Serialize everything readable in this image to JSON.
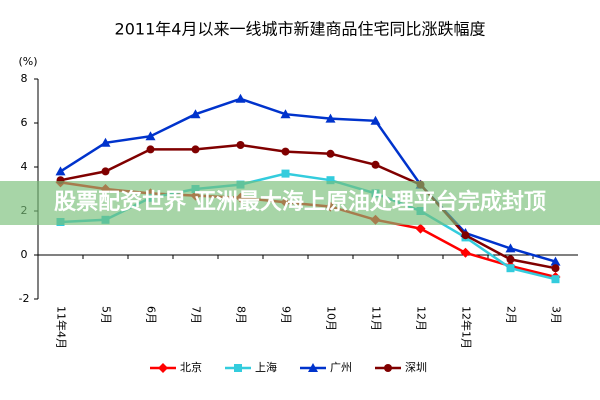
{
  "chart_data": {
    "type": "line",
    "title": "2011年4月以来一线城市新建商品住宅同比涨跌幅度",
    "y_label": "(%)",
    "categories": [
      "11年4月",
      "5月",
      "6月",
      "7月",
      "8月",
      "9月",
      "10月",
      "11月",
      "12月",
      "12年1月",
      "2月",
      "3月"
    ],
    "series": [
      {
        "name": "北京",
        "color": "#ff0000",
        "marker": "diamond",
        "values": [
          3.3,
          3.0,
          2.8,
          2.7,
          2.6,
          2.4,
          2.2,
          1.6,
          1.2,
          0.1,
          -0.5,
          -1.0
        ]
      },
      {
        "name": "上海",
        "color": "#33ccdd",
        "marker": "square",
        "values": [
          1.5,
          1.6,
          2.6,
          3.0,
          3.2,
          3.7,
          3.4,
          2.8,
          2.0,
          0.8,
          -0.6,
          -1.1
        ]
      },
      {
        "name": "广州",
        "color": "#0033cc",
        "marker": "triangle",
        "values": [
          3.8,
          5.1,
          5.4,
          6.4,
          7.1,
          6.4,
          6.2,
          6.1,
          3.2,
          1.0,
          0.3,
          -0.3
        ]
      },
      {
        "name": "深圳",
        "color": "#800000",
        "marker": "circle",
        "values": [
          3.4,
          3.8,
          4.8,
          4.8,
          5.0,
          4.7,
          4.6,
          4.1,
          3.2,
          0.9,
          -0.2,
          -0.6
        ]
      }
    ],
    "ylim": [
      -2,
      8
    ],
    "yticks": [
      -2,
      0,
      2,
      4,
      6,
      8
    ],
    "legend": "bottom"
  },
  "overlay_text": "股票配资世界 亚洲最大海上原油处理平台完成封顶"
}
